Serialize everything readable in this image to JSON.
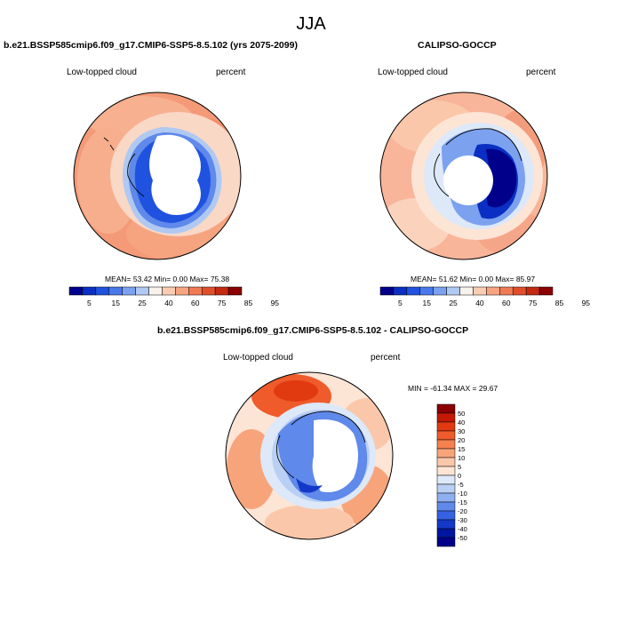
{
  "page": {
    "title": "JJA"
  },
  "panels": [
    {
      "title": "b.e21.BSSP585cmip6.f09_g17.CMIP6-SSP5-8.5.102 (yrs 2075-2099)",
      "variable": "Low-topped cloud",
      "units": "percent",
      "stats": "MEAN=  53.42  Min=   0.00  Max=  75.38",
      "colorbar_labels": [
        "5",
        "15",
        "25",
        "40",
        "60",
        "75",
        "85",
        "95"
      ]
    },
    {
      "title": "CALIPSO-GOCCP",
      "variable": "Low-topped cloud",
      "units": "percent",
      "stats": "MEAN=  51.62  Min=   0.00  Max=  85.97",
      "colorbar_labels": [
        "5",
        "15",
        "25",
        "40",
        "60",
        "75",
        "85",
        "95"
      ]
    }
  ],
  "difference": {
    "title": "b.e21.BSSP585cmip6.f09_g17.CMIP6-SSP5-8.5.102 - CALIPSO-GOCCP",
    "variable": "Low-topped cloud",
    "units": "percent",
    "stats": "MIN = -61.34 MAX =  29.67",
    "colorbar_labels": [
      "50",
      "40",
      "30",
      "20",
      "15",
      "10",
      "5",
      "0",
      "-5",
      "-10",
      "-15",
      "-20",
      "-30",
      "-40",
      "-50"
    ]
  },
  "colors": {
    "seq": [
      "#00008b",
      "#0a2fc2",
      "#2052e0",
      "#4a78ea",
      "#7ba1ef",
      "#b0c9f2",
      "#f7f3ec",
      "#f9cdb3",
      "#f6a582",
      "#ef7b55",
      "#e04f2c",
      "#c42a12",
      "#8b0000"
    ],
    "div": [
      "#8b0000",
      "#c41a05",
      "#e23a10",
      "#ef5b2b",
      "#f5814f",
      "#f8a47b",
      "#fac7aa",
      "#fde5d6",
      "#dde8f8",
      "#b9cff3",
      "#8fb0ef",
      "#5f89ea",
      "#3462e2",
      "#1438c8",
      "#0016a0",
      "#00008b"
    ]
  }
}
